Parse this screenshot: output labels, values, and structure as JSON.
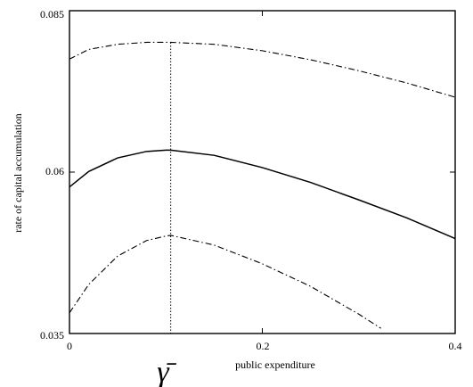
{
  "chart_data": {
    "type": "line",
    "xlabel": "public expenditure",
    "ylabel": "rate of capital accumulation",
    "xlim": [
      0,
      0.4
    ],
    "ylim": [
      0.035,
      0.085
    ],
    "x_ticks": [
      "0",
      "0.2",
      "0.4"
    ],
    "y_ticks": [
      "0.085",
      "0.06",
      "0.035"
    ],
    "grid": false,
    "marker": {
      "label": "γ̄",
      "x": 0.105
    },
    "series": [
      {
        "style": "dash-dot",
        "x": [
          0,
          0.02,
          0.05,
          0.08,
          0.1,
          0.105,
          0.15,
          0.2,
          0.25,
          0.3,
          0.35,
          0.4
        ],
        "y": [
          0.0775,
          0.079,
          0.0798,
          0.0801,
          0.0801,
          0.0801,
          0.0798,
          0.0788,
          0.0774,
          0.0757,
          0.0738,
          0.0716
        ]
      },
      {
        "style": "solid",
        "x": [
          0,
          0.02,
          0.05,
          0.08,
          0.1,
          0.105,
          0.15,
          0.2,
          0.25,
          0.3,
          0.35,
          0.4
        ],
        "y": [
          0.0577,
          0.0601,
          0.0622,
          0.0632,
          0.0634,
          0.0634,
          0.0626,
          0.0607,
          0.0584,
          0.0557,
          0.0529,
          0.0497
        ]
      },
      {
        "style": "dash-dot",
        "x": [
          0,
          0.02,
          0.05,
          0.08,
          0.1,
          0.105,
          0.15,
          0.2,
          0.25,
          0.3,
          0.323
        ],
        "y": [
          0.0382,
          0.0426,
          0.047,
          0.0494,
          0.0501,
          0.0502,
          0.0487,
          0.0458,
          0.0423,
          0.038,
          0.0358
        ]
      }
    ]
  }
}
